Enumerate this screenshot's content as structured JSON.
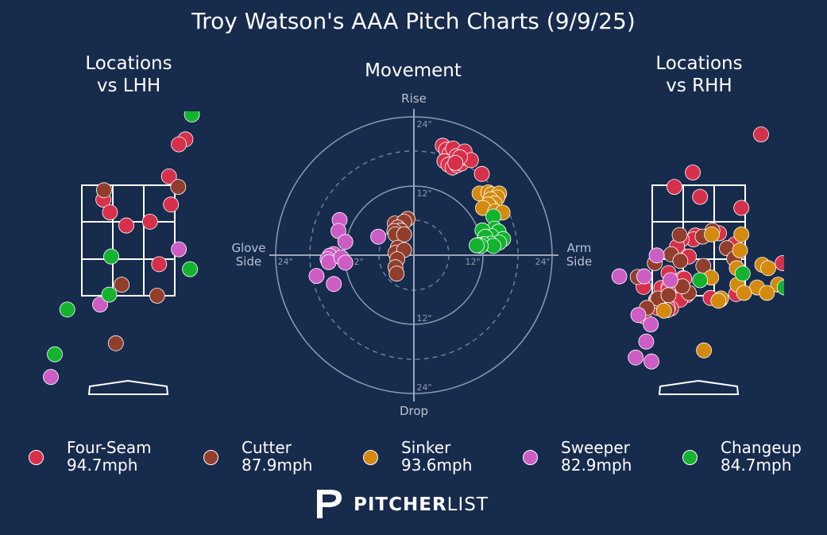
{
  "title": "Troy Watson's AAA Pitch Charts (9/9/25)",
  "panels": {
    "lhh_title_1": "Locations",
    "lhh_title_2": "vs LHH",
    "movement_title": "Movement",
    "rhh_title_1": "Locations",
    "rhh_title_2": "vs RHH"
  },
  "movement_labels": {
    "rise": "Rise",
    "drop": "Drop",
    "glove_1": "Glove",
    "glove_2": "Side",
    "arm_1": "Arm",
    "arm_2": "Side",
    "tick_top_24": "24\"",
    "tick_top_12": "12\"",
    "tick_bottom_12": "12\"",
    "tick_bottom_24": "24\"",
    "tick_left_24": "24\"",
    "tick_left_12": "12\"",
    "tick_right_12": "12\"",
    "tick_right_24": "24\""
  },
  "legend": [
    {
      "name": "Four-Seam",
      "speed": "94.7mph",
      "color": "#d7304a"
    },
    {
      "name": "Cutter",
      "speed": "87.9mph",
      "color": "#923e2c"
    },
    {
      "name": "Sinker",
      "speed": "93.6mph",
      "color": "#d38a0e"
    },
    {
      "name": "Sweeper",
      "speed": "82.9mph",
      "color": "#cd5dc4"
    },
    {
      "name": "Changeup",
      "speed": "84.7mph",
      "color": "#13b330"
    }
  ],
  "brand": {
    "bold": "PITCHER",
    "light": "LIST"
  },
  "chart_data": [
    {
      "type": "scatter",
      "title": "Locations vs LHH",
      "x_unit": "ft (catcher view)",
      "y_unit": "ft",
      "xlim": [
        -1.25,
        2.35
      ],
      "ylim": [
        -0.35,
        5.0
      ],
      "grid": false,
      "series": [
        {
          "name": "Four-Seam",
          "points": [
            [
              -0.03,
              2.77
            ],
            [
              -0.38,
              3.24
            ],
            [
              -0.28,
              3.01
            ],
            [
              0.65,
              3.15
            ],
            [
              0.33,
              2.84
            ],
            [
              0.47,
              2.07
            ],
            [
              0.62,
              3.66
            ],
            [
              0.87,
              4.33
            ],
            [
              0.77,
              4.24
            ]
          ]
        },
        {
          "name": "Cutter",
          "points": [
            [
              -0.37,
              3.41
            ],
            [
              0.76,
              3.47
            ],
            [
              -0.1,
              1.7
            ],
            [
              0.44,
              1.5
            ],
            [
              -0.19,
              0.64
            ]
          ]
        },
        {
          "name": "Sinker",
          "points": []
        },
        {
          "name": "Sweeper",
          "points": [
            [
              0.77,
              2.34
            ],
            [
              -0.43,
              1.34
            ],
            [
              -1.18,
              0.03
            ]
          ]
        },
        {
          "name": "Changeup",
          "points": [
            [
              -0.26,
              2.21
            ],
            [
              0.97,
              4.78
            ],
            [
              0.94,
              1.98
            ],
            [
              -0.29,
              1.52
            ],
            [
              -0.93,
              1.25
            ],
            [
              -1.12,
              0.44
            ]
          ]
        }
      ]
    },
    {
      "type": "scatter",
      "title": "Movement",
      "x_unit": "inches (glove side negative, arm side positive)",
      "y_unit": "inches (rise positive, drop negative)",
      "xlim": [
        -24,
        24
      ],
      "ylim": [
        -24,
        24
      ],
      "rings": [
        12,
        24
      ],
      "dashed_rings": [
        6,
        18
      ],
      "series": [
        {
          "name": "Four-Seam",
          "points": [
            [
              5.0,
              19.0
            ],
            [
              5.6,
              18.3
            ],
            [
              6.2,
              17.6
            ],
            [
              6.8,
              18.5
            ],
            [
              7.4,
              17.2
            ],
            [
              5.3,
              16.3
            ],
            [
              6.0,
              15.7
            ],
            [
              6.7,
              15.2
            ],
            [
              7.5,
              15.6
            ],
            [
              8.2,
              15.9
            ],
            [
              9.0,
              16.9
            ],
            [
              8.8,
              18.0
            ],
            [
              9.9,
              16.5
            ],
            [
              8.0,
              17.0
            ],
            [
              7.2,
              16.0
            ],
            [
              11.8,
              14.1
            ]
          ]
        },
        {
          "name": "Cutter",
          "points": [
            [
              -3.3,
              5.5
            ],
            [
              -1.1,
              6.3
            ],
            [
              -1.7,
              5.8
            ],
            [
              -2.8,
              4.8
            ],
            [
              -2.3,
              4.3
            ],
            [
              -3.4,
              4.2
            ],
            [
              -3.2,
              3.6
            ],
            [
              -1.7,
              3.6
            ],
            [
              -2.8,
              1.3
            ],
            [
              -3.2,
              0.4
            ],
            [
              -1.7,
              0.9
            ],
            [
              -2.9,
              -0.7
            ],
            [
              -3.2,
              -2.1
            ],
            [
              -3.0,
              -3.2
            ]
          ]
        },
        {
          "name": "Sinker",
          "points": [
            [
              11.4,
              10.7
            ],
            [
              12.9,
              10.9
            ],
            [
              13.5,
              10.6
            ],
            [
              14.8,
              10.7
            ],
            [
              14.5,
              10.0
            ],
            [
              13.3,
              9.7
            ],
            [
              14.0,
              9.0
            ],
            [
              13.4,
              8.3
            ],
            [
              12.9,
              8.8
            ],
            [
              12.0,
              8.2
            ],
            [
              14.1,
              7.6
            ],
            [
              15.4,
              7.4
            ]
          ]
        },
        {
          "name": "Sweeper",
          "points": [
            [
              -12.9,
              6.1
            ],
            [
              -13.1,
              4.2
            ],
            [
              -11.9,
              2.3
            ],
            [
              -6.2,
              3.2
            ],
            [
              -13.9,
              0.2
            ],
            [
              -14.6,
              -0.1
            ],
            [
              -15.0,
              -0.7
            ],
            [
              -14.8,
              -1.2
            ],
            [
              -12.6,
              -0.4
            ],
            [
              -11.9,
              -1.3
            ],
            [
              -16.9,
              -3.6
            ],
            [
              -13.9,
              -5.0
            ]
          ]
        },
        {
          "name": "Changeup",
          "points": [
            [
              13.8,
              6.7
            ],
            [
              14.0,
              4.6
            ],
            [
              11.9,
              4.3
            ],
            [
              14.7,
              4.1
            ],
            [
              13.5,
              3.3
            ],
            [
              12.4,
              3.2
            ],
            [
              15.5,
              2.8
            ],
            [
              14.8,
              2.2
            ],
            [
              13.3,
              2.0
            ],
            [
              12.1,
              1.9
            ],
            [
              11.2,
              1.8
            ],
            [
              13.8,
              1.6
            ],
            [
              11.6,
              1.6
            ],
            [
              10.9,
              1.7
            ]
          ]
        }
      ]
    },
    {
      "type": "scatter",
      "title": "Locations vs RHH",
      "x_unit": "ft (catcher view)",
      "y_unit": "ft",
      "xlim": [
        -1.25,
        2.35
      ],
      "ylim": [
        -0.35,
        5.0
      ],
      "grid": false,
      "series": [
        {
          "name": "Four-Seam",
          "points": [
            [
              -0.37,
              3.47
            ],
            [
              -0.09,
              3.73
            ],
            [
              0.65,
              3.09
            ],
            [
              0.31,
              2.63
            ],
            [
              0.55,
              2.43
            ],
            [
              -0.05,
              2.59
            ],
            [
              -0.08,
              2.52
            ],
            [
              -0.26,
              2.52
            ],
            [
              -0.31,
              2.29
            ],
            [
              -0.33,
              2.39
            ],
            [
              -0.57,
              1.64
            ],
            [
              -0.46,
              1.66
            ],
            [
              -0.46,
              1.61
            ],
            [
              -0.24,
              1.61
            ],
            [
              -0.18,
              1.51
            ],
            [
              -0.28,
              1.43
            ],
            [
              -0.65,
              1.43
            ],
            [
              -0.84,
              1.66
            ],
            [
              -0.59,
              1.34
            ],
            [
              -0.42,
              1.27
            ],
            [
              -0.62,
              1.39
            ],
            [
              -0.51,
              1.36
            ],
            [
              -0.47,
              1.28
            ],
            [
              -0.63,
              1.28
            ],
            [
              -0.64,
              1.41
            ],
            [
              0.18,
              1.46
            ],
            [
              0.57,
              1.53
            ],
            [
              -0.24,
              1.82
            ],
            [
              -0.46,
              1.91
            ],
            [
              0.95,
              4.42
            ],
            [
              1.28,
              2.09
            ],
            [
              -0.22,
              1.81
            ],
            [
              0.02,
              3.29
            ],
            [
              -0.15,
              2.21
            ]
          ]
        },
        {
          "name": "Cutter",
          "points": [
            [
              -0.42,
              2.25
            ],
            [
              -0.28,
              2.13
            ],
            [
              0.21,
              2.68
            ],
            [
              0.06,
              2.57
            ],
            [
              -0.67,
              2.09
            ],
            [
              -0.62,
              1.45
            ],
            [
              -0.46,
              1.51
            ],
            [
              -0.15,
              1.55
            ],
            [
              0.43,
              2.36
            ],
            [
              0.54,
              2.17
            ],
            [
              -0.93,
              1.84
            ],
            [
              -0.84,
              1.13
            ],
            [
              -0.48,
              1.24
            ],
            [
              0.33,
              1.43
            ],
            [
              -0.25,
              1.67
            ],
            [
              -0.79,
              1.28
            ],
            [
              0.07,
              2.04
            ],
            [
              -0.29,
              2.6
            ]
          ]
        },
        {
          "name": "Sinker",
          "points": [
            [
              0.65,
              2.61
            ],
            [
              0.58,
              2.0
            ],
            [
              0.63,
              2.32
            ],
            [
              0.97,
              2.06
            ],
            [
              1.06,
              2.0
            ],
            [
              0.59,
              1.7
            ],
            [
              0.89,
              1.65
            ],
            [
              0.69,
              1.55
            ],
            [
              1.21,
              1.7
            ],
            [
              1.04,
              1.55
            ],
            [
              0.2,
              2.61
            ],
            [
              0.19,
              1.83
            ],
            [
              0.34,
              1.45
            ],
            [
              0.3,
              1.41
            ],
            [
              0.08,
              0.51
            ],
            [
              -0.53,
              1.23
            ]
          ]
        },
        {
          "name": "Sweeper",
          "points": [
            [
              -0.64,
              2.23
            ],
            [
              -0.83,
              1.85
            ],
            [
              -0.92,
              1.15
            ],
            [
              -0.43,
              1.78
            ],
            [
              -0.8,
              0.67
            ],
            [
              -0.73,
              0.98
            ],
            [
              -0.96,
              0.38
            ],
            [
              -1.21,
              1.85
            ],
            [
              -0.72,
              0.31
            ]
          ]
        },
        {
          "name": "Changeup",
          "points": [
            [
              0.67,
              1.9
            ],
            [
              0.02,
              1.78
            ],
            [
              1.31,
              1.65
            ]
          ]
        }
      ]
    }
  ]
}
